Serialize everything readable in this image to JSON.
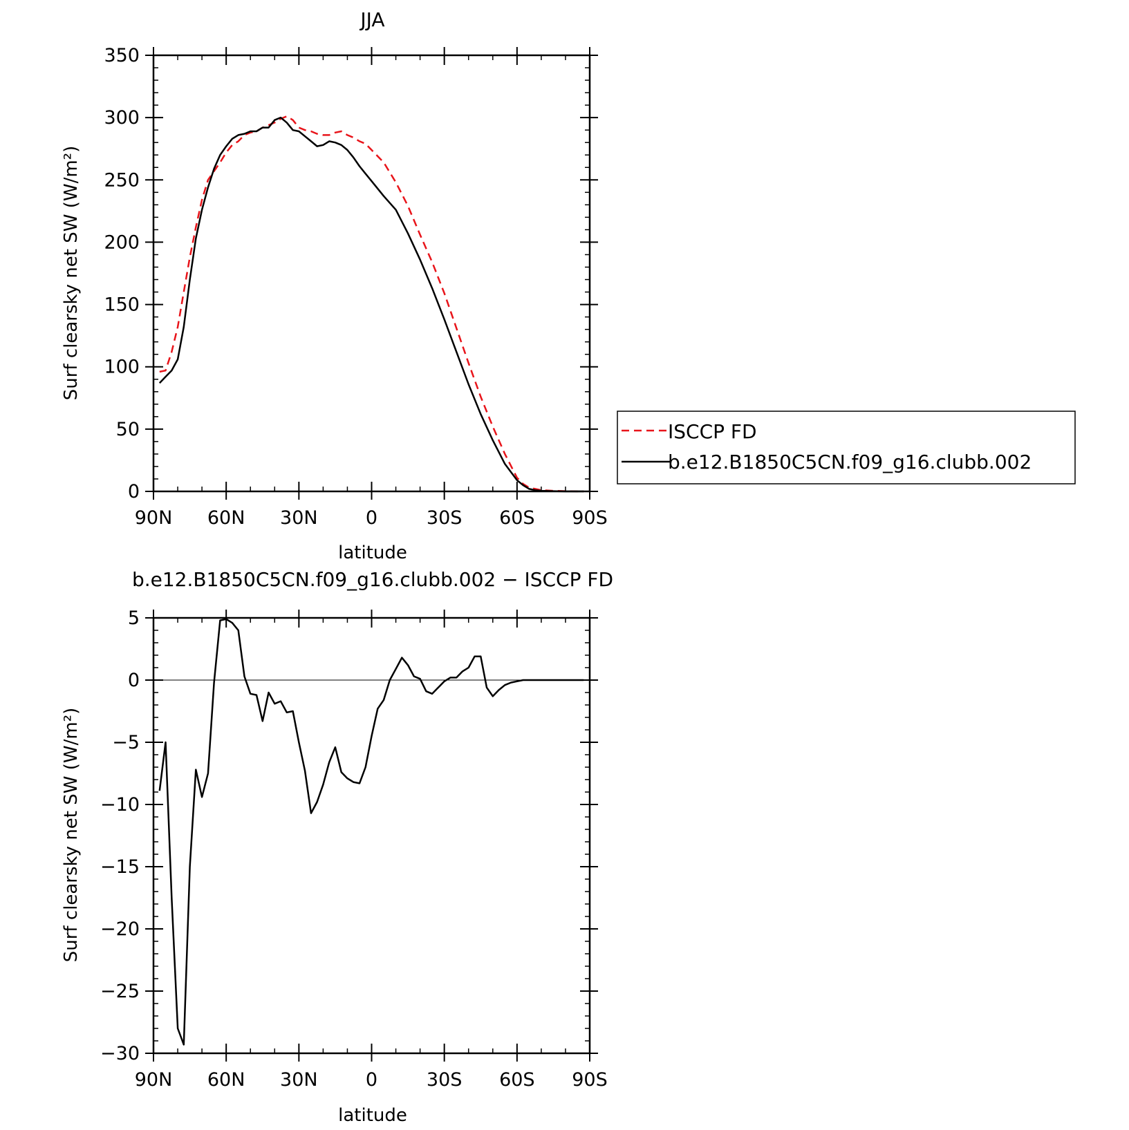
{
  "chart_data": [
    {
      "type": "line",
      "title": "JJA",
      "xlabel": "latitude",
      "ylabel": "Surf clearsky net SW (W/m²)",
      "xlim": [
        90,
        -90
      ],
      "ylim": [
        0,
        350
      ],
      "x_ticks": [
        90,
        60,
        30,
        0,
        -30,
        -60,
        -90
      ],
      "x_tick_labels": [
        "90N",
        "60N",
        "30N",
        "0",
        "30S",
        "60S",
        "90S"
      ],
      "y_ticks": [
        0,
        50,
        100,
        150,
        200,
        250,
        300,
        350
      ],
      "y_tick_labels": [
        "0",
        "50",
        "100",
        "150",
        "200",
        "250",
        "300",
        "350"
      ],
      "legend": {
        "placement": "right",
        "entries": [
          "ISCCP FD",
          "b.e12.B1850C5CN.f09_g16.clubb.002"
        ]
      },
      "series": [
        {
          "name": "ISCCP FD",
          "color": "#e8141a",
          "style": "dashed",
          "x": [
            87.5,
            85,
            82.5,
            80,
            77.5,
            75,
            72.5,
            70,
            67.5,
            65,
            62.5,
            60,
            57.5,
            55,
            52.5,
            50,
            47.5,
            45,
            42.5,
            40,
            37.5,
            35,
            32.5,
            30,
            27.5,
            25,
            22.5,
            20,
            17.5,
            15,
            12.5,
            10,
            7.5,
            5,
            2.5,
            0,
            -5,
            -10,
            -15,
            -20,
            -25,
            -30,
            -35,
            -40,
            -45,
            -50,
            -55,
            -60,
            -62.5,
            -65,
            -67.5,
            -70,
            -75,
            -80,
            -85,
            -87.5
          ],
          "y": [
            96,
            97,
            112,
            132,
            160,
            188,
            212,
            234,
            250,
            257,
            264,
            272,
            278,
            281,
            286,
            288,
            289,
            292,
            294,
            296,
            299,
            301,
            298,
            292,
            290,
            289,
            287,
            286,
            286,
            288,
            289,
            286,
            284,
            281,
            279,
            274,
            264,
            248,
            229,
            206,
            184,
            159,
            131,
            103,
            76,
            52,
            30,
            11,
            6,
            3,
            2,
            1,
            0.5,
            0.2,
            0,
            0
          ]
        },
        {
          "name": "b.e12.B1850C5CN.f09_g16.clubb.002",
          "color": "#000000",
          "style": "solid",
          "x": [
            87.5,
            85,
            82.5,
            80,
            77.5,
            75,
            72.5,
            70,
            67.5,
            65,
            62.5,
            60,
            57.5,
            55,
            52.5,
            50,
            47.5,
            45,
            42.5,
            40,
            37.5,
            35,
            32.5,
            30,
            27.5,
            25,
            22.5,
            20,
            17.5,
            15,
            12.5,
            10,
            7.5,
            5,
            2.5,
            0,
            -5,
            -10,
            -15,
            -20,
            -25,
            -30,
            -35,
            -40,
            -45,
            -50,
            -55,
            -60,
            -62.5,
            -65,
            -67.5,
            -70,
            -75,
            -80,
            -85,
            -87.5
          ],
          "y": [
            87,
            92,
            97,
            106,
            132,
            170,
            203,
            226,
            244,
            259,
            270,
            277,
            283,
            286,
            287,
            289,
            289,
            292,
            292,
            298,
            300,
            296,
            290,
            289,
            285,
            281,
            277,
            278,
            281,
            280,
            278,
            274,
            268,
            261,
            255,
            249,
            237,
            226,
            207,
            186,
            163,
            138,
            112,
            86,
            62,
            41,
            22,
            9,
            5,
            2,
            1,
            0.5,
            0.2,
            0,
            0,
            0
          ]
        }
      ]
    },
    {
      "type": "line",
      "title": "b.e12.B1850C5CN.f09_g16.clubb.002 − ISCCP FD",
      "xlabel": "latitude",
      "ylabel": "Surf clearsky net SW (W/m²)",
      "xlim": [
        90,
        -90
      ],
      "ylim": [
        -30,
        5
      ],
      "x_ticks": [
        90,
        60,
        30,
        0,
        -30,
        -60,
        -90
      ],
      "x_tick_labels": [
        "90N",
        "60N",
        "30N",
        "0",
        "30S",
        "60S",
        "90S"
      ],
      "y_ticks": [
        -30,
        -25,
        -20,
        -15,
        -10,
        -5,
        0,
        5
      ],
      "y_tick_labels": [
        "−30",
        "−25",
        "−20",
        "−15",
        "−10",
        "−5",
        "0",
        "5"
      ],
      "series": [
        {
          "color": "#000000",
          "style": "solid",
          "x": [
            87.5,
            85,
            82.5,
            80,
            77.5,
            75,
            72.5,
            70,
            67.5,
            65,
            62.5,
            60,
            57.5,
            55,
            52.5,
            50,
            47.5,
            45,
            42.5,
            40,
            37.5,
            35,
            32.5,
            30,
            27.5,
            25,
            22.5,
            20,
            17.5,
            15,
            12.5,
            10,
            7.5,
            5,
            2.5,
            0,
            -2.5,
            -5,
            -7.5,
            -10,
            -12.5,
            -15,
            -17.5,
            -20,
            -22.5,
            -25,
            -27.5,
            -30,
            -32.5,
            -35,
            -37.5,
            -40,
            -42.5,
            -45,
            -47.5,
            -50,
            -52.5,
            -55,
            -57.5,
            -60,
            -62.5,
            -65,
            -67.5,
            -70,
            -72.5,
            -75,
            -77.5,
            -80,
            -82.5,
            -85,
            -87.5
          ],
          "y": [
            -8.9,
            -5.0,
            -17.5,
            -28.0,
            -29.3,
            -15.0,
            -7.2,
            -9.4,
            -7.5,
            -0.2,
            4.8,
            4.9,
            4.6,
            4.0,
            0.3,
            -1.1,
            -1.2,
            -3.3,
            -1.0,
            -1.9,
            -1.7,
            -2.6,
            -2.5,
            -5.0,
            -7.3,
            -10.7,
            -9.8,
            -8.4,
            -6.6,
            -5.4,
            -7.4,
            -7.9,
            -8.2,
            -8.3,
            -7.0,
            -4.5,
            -2.3,
            -1.6,
            0.0,
            0.9,
            1.8,
            1.2,
            0.3,
            0.1,
            -0.9,
            -1.1,
            -0.6,
            -0.1,
            0.2,
            0.2,
            0.7,
            1.0,
            1.9,
            1.9,
            -0.6,
            -1.3,
            -0.8,
            -0.4,
            -0.2,
            -0.1,
            0.0,
            0.0,
            0.0,
            0.0,
            0.0,
            0.0,
            0.0,
            0.0,
            0.0,
            0.0,
            0.0
          ]
        }
      ]
    }
  ]
}
